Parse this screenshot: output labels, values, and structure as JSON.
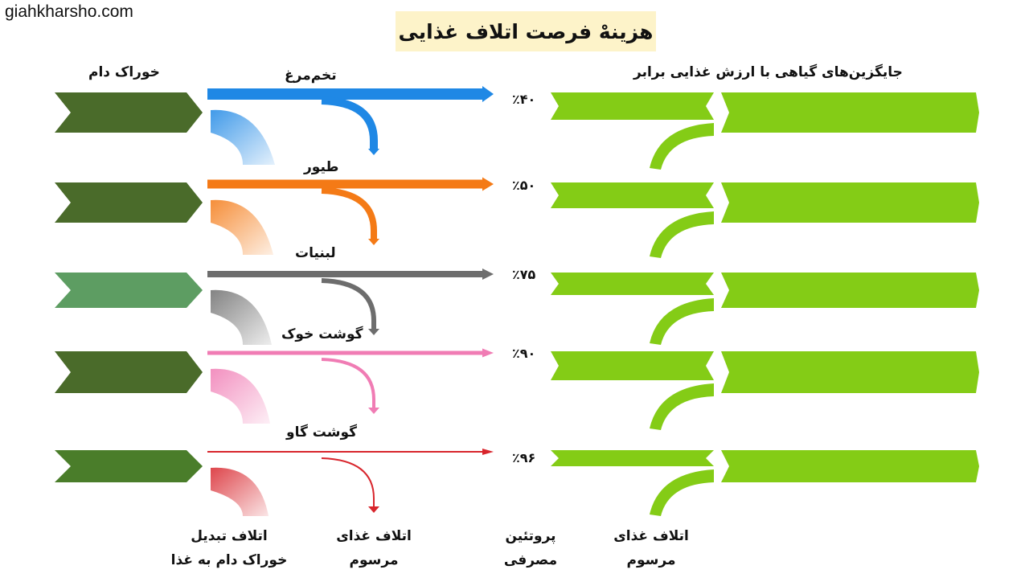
{
  "site": "giahkharsho.com",
  "title": "هزینهْ فرصت اتلاف غذایی",
  "headers": {
    "feed": "خوراک دام",
    "plant": "جایگزین‌های گیاهی با ارزش غذایی برابر"
  },
  "rows": [
    {
      "label": "تخم‌مرغ",
      "percent": "٪۴۰",
      "loss": 0.4,
      "color": "#1f88e5",
      "feed_color": "#4a6b2a"
    },
    {
      "label": "طیور",
      "percent": "٪۵۰",
      "loss": 0.5,
      "color": "#f47a16",
      "feed_color": "#4a6b2a"
    },
    {
      "label": "لبنیات",
      "percent": "٪۷۵",
      "loss": 0.75,
      "color": "#6d6d6d",
      "feed_color": "#5d9d62"
    },
    {
      "label": "گوشت خوک",
      "percent": "٪۹۰",
      "loss": 0.9,
      "color": "#f07cb4",
      "feed_color": "#4a6b2a"
    },
    {
      "label": "گوشت گاو",
      "percent": "٪۹۶",
      "loss": 0.96,
      "color": "#d8252c",
      "feed_color": "#4a7d2a"
    }
  ],
  "plant_color": "#84cc16",
  "footer": {
    "conversion_loss": [
      "اتلاف تبدیل",
      "خوراک دام به غذا"
    ],
    "food_loss_left": [
      "اتلاف غذای",
      "مرسوم"
    ],
    "protein": [
      "پروتئین",
      "مصرفی"
    ],
    "food_loss_right": [
      "اتلاف غذای",
      "مرسوم"
    ]
  }
}
